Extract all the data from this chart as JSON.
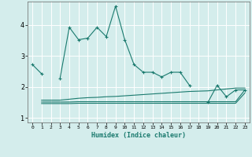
{
  "xlabel": "Humidex (Indice chaleur)",
  "background_color": "#d4edec",
  "grid_color": "#ffffff",
  "line_color": "#1a7a6e",
  "xlim": [
    -0.5,
    23.5
  ],
  "ylim": [
    0.85,
    4.75
  ],
  "yticks": [
    1,
    2,
    3,
    4
  ],
  "xticks": [
    0,
    1,
    2,
    3,
    4,
    5,
    6,
    7,
    8,
    9,
    10,
    11,
    12,
    13,
    14,
    15,
    16,
    17,
    18,
    19,
    20,
    21,
    22,
    23
  ],
  "main_x": [
    0,
    1,
    2,
    3,
    4,
    5,
    6,
    7,
    8,
    9,
    10,
    11,
    12,
    13,
    14,
    15,
    16,
    17,
    18,
    19,
    20,
    21,
    22,
    23
  ],
  "main_y": [
    2.72,
    2.42,
    null,
    2.28,
    3.92,
    3.52,
    3.57,
    3.92,
    3.62,
    4.6,
    3.52,
    2.72,
    2.47,
    2.47,
    2.32,
    2.47,
    2.47,
    2.05,
    null,
    1.5,
    2.05,
    1.68,
    1.9,
    1.9
  ],
  "flat1_x": [
    1,
    2,
    3,
    4,
    5,
    6,
    7,
    8,
    9,
    10,
    11,
    12,
    13,
    14,
    15,
    16,
    17,
    18,
    19,
    20,
    21,
    22,
    23
  ],
  "flat1_y": [
    1.57,
    1.57,
    1.57,
    1.6,
    1.63,
    1.65,
    1.66,
    1.68,
    1.69,
    1.71,
    1.73,
    1.75,
    1.77,
    1.79,
    1.81,
    1.83,
    1.85,
    1.86,
    1.87,
    1.9,
    1.93,
    1.96,
    1.96
  ],
  "flat2_x": [
    1,
    2,
    3,
    4,
    5,
    6,
    7,
    8,
    9,
    10,
    11,
    12,
    13,
    14,
    15,
    16,
    17,
    18,
    19,
    20,
    21,
    22,
    23
  ],
  "flat2_y": [
    1.51,
    1.51,
    1.51,
    1.51,
    1.52,
    1.52,
    1.52,
    1.52,
    1.52,
    1.52,
    1.52,
    1.52,
    1.52,
    1.52,
    1.52,
    1.52,
    1.52,
    1.52,
    1.52,
    1.52,
    1.52,
    1.52,
    1.9
  ],
  "flat3_x": [
    1,
    2,
    3,
    4,
    5,
    6,
    7,
    8,
    9,
    10,
    11,
    12,
    13,
    14,
    15,
    16,
    17,
    18,
    19,
    20,
    21,
    22,
    23
  ],
  "flat3_y": [
    1.46,
    1.46,
    1.46,
    1.46,
    1.47,
    1.47,
    1.47,
    1.47,
    1.47,
    1.47,
    1.47,
    1.47,
    1.47,
    1.47,
    1.47,
    1.47,
    1.47,
    1.47,
    1.47,
    1.47,
    1.47,
    1.47,
    1.8
  ]
}
